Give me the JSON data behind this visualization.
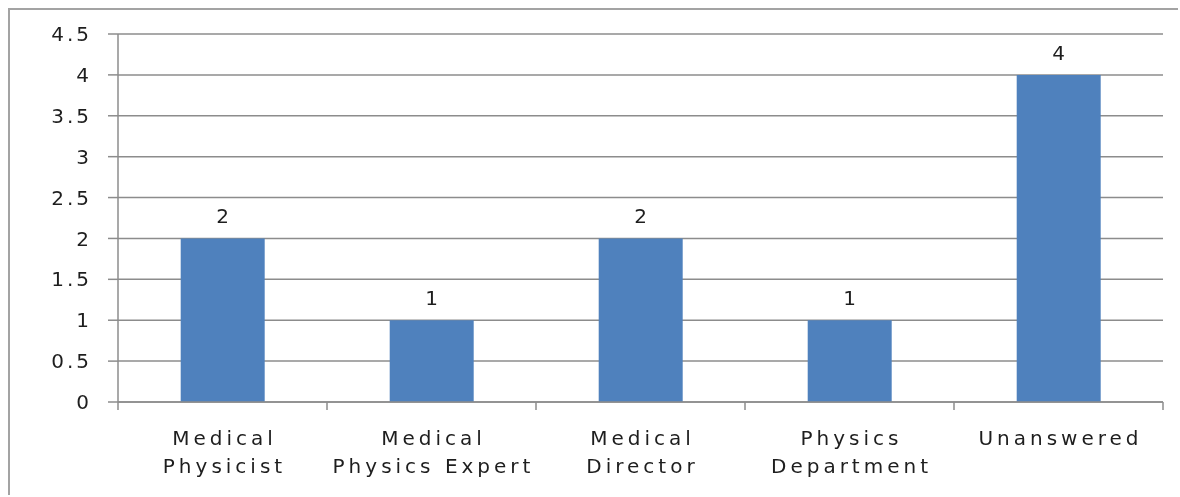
{
  "chart_data": {
    "type": "bar",
    "categories": [
      "Medical Physicist",
      "Medical Physics Expert",
      "Medical Director",
      "Physics Department",
      "Unanswered"
    ],
    "values": [
      2,
      1,
      2,
      1,
      4
    ],
    "color": "#4f81bd",
    "ylim": [
      0,
      4.5
    ],
    "yticks": [
      0,
      0.5,
      1,
      1.5,
      2,
      2.5,
      3,
      3.5,
      4,
      4.5
    ],
    "grid": "y",
    "data_labels": true
  }
}
